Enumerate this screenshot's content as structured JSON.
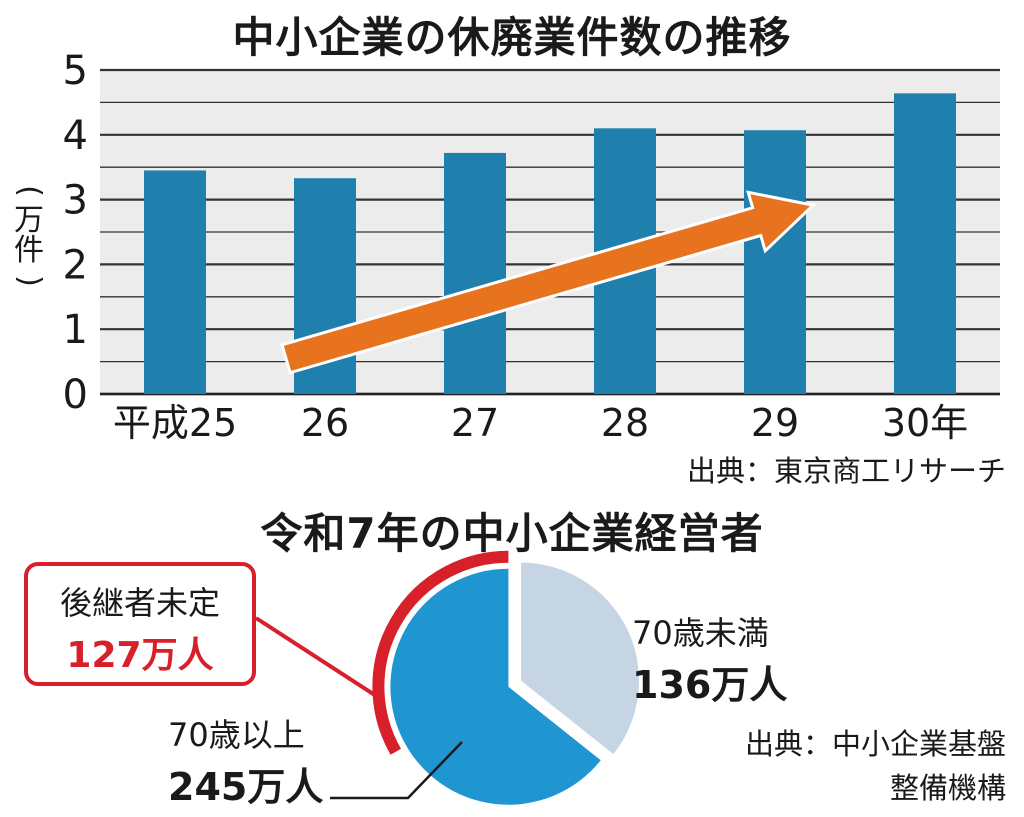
{
  "chart_data": [
    {
      "type": "bar",
      "title": "中小企業の休廃業件数の推移",
      "ylabel": "万件",
      "categories": [
        "平成25",
        "26",
        "27",
        "28",
        "29",
        "30年"
      ],
      "values": [
        3.45,
        3.33,
        3.72,
        4.1,
        4.07,
        4.64
      ],
      "ylim": [
        0,
        5
      ],
      "yticks": [
        0,
        1,
        2,
        3,
        4,
        5
      ],
      "grid": true,
      "annotation": "upward trend arrow",
      "source": "出典：東京商工リサーチ",
      "colors": {
        "bar": "#1f7fad",
        "arrow": "#e8731e",
        "grid": "#333333",
        "background": "#ececec"
      }
    },
    {
      "type": "pie",
      "title": "令和7年の中小企業経営者",
      "slices": [
        {
          "line1": "70歳未満",
          "line2": "136万人",
          "value": 136,
          "color": "#c5d5e4"
        },
        {
          "line1": "70歳以上",
          "line2": "245万人",
          "value": 245,
          "color": "#1f96d2"
        }
      ],
      "callout": {
        "line1": "後継者未定",
        "line2": "127万人",
        "value": 127,
        "color": "#d8202a"
      },
      "source_line1": "出典：中小企業基盤",
      "source_line2": "整備機構"
    }
  ]
}
